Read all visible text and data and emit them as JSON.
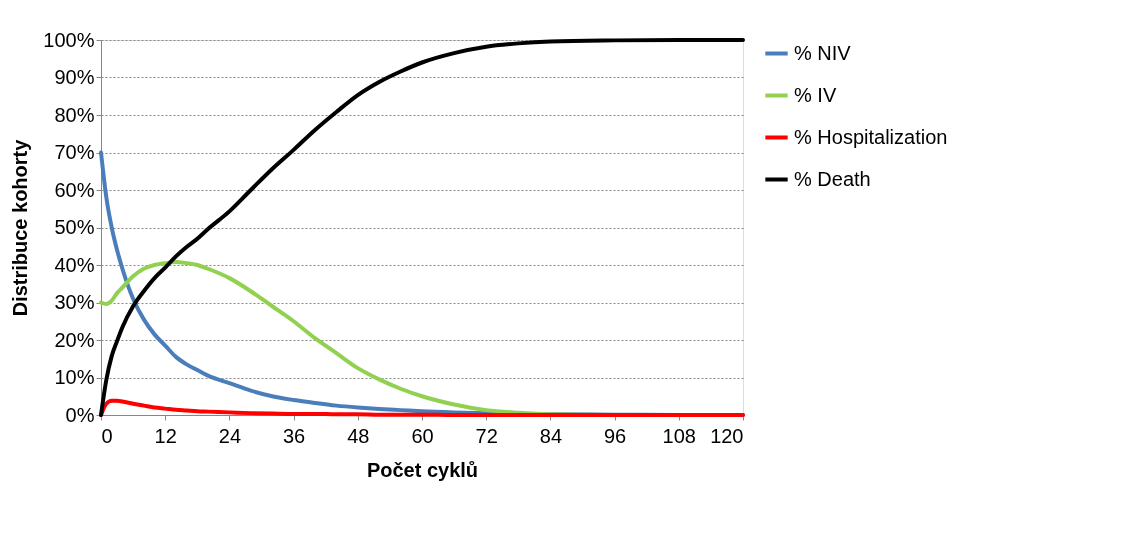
{
  "chart_data": {
    "type": "line",
    "xlabel": "Počet cyklů",
    "ylabel": "Distribuce kohorty",
    "x": [
      0,
      1,
      2,
      3,
      4,
      6,
      8,
      10,
      12,
      14,
      16,
      18,
      20,
      24,
      28,
      32,
      36,
      40,
      44,
      48,
      52,
      56,
      60,
      66,
      72,
      78,
      84,
      96,
      108,
      120
    ],
    "series": [
      {
        "name": "% NIV",
        "color": "#4a7ebb",
        "values": [
          70,
          58,
          50,
          44,
          39,
          31,
          25.5,
          21.5,
          18.5,
          15.5,
          13.5,
          12,
          10.5,
          8.5,
          6.5,
          5,
          4,
          3.2,
          2.5,
          2,
          1.6,
          1.3,
          1,
          0.7,
          0.5,
          0.3,
          0.2,
          0.1,
          0,
          0
        ]
      },
      {
        "name": "% IV",
        "color": "#92d050",
        "values": [
          30,
          29.6,
          30.5,
          32.5,
          34,
          37,
          39,
          40,
          40.5,
          40.8,
          40.5,
          40,
          39,
          36.5,
          33,
          29,
          25,
          20.5,
          16.5,
          12.5,
          9.5,
          7,
          5,
          2.8,
          1.3,
          0.6,
          0.2,
          0,
          null,
          null
        ]
      },
      {
        "name": "% Hospitalization",
        "color": "#ff0000",
        "values": [
          0,
          3,
          3.8,
          3.8,
          3.6,
          3,
          2.5,
          2,
          1.7,
          1.4,
          1.2,
          1,
          0.9,
          0.7,
          0.5,
          0.4,
          0.3,
          0.3,
          0.2,
          0.2,
          0.1,
          0.1,
          0.1,
          0,
          0,
          0,
          0,
          0,
          0,
          0
        ]
      },
      {
        "name": "% Death",
        "color": "#000000",
        "values": [
          0,
          9.4,
          15.7,
          19.7,
          23.4,
          29,
          33,
          36.5,
          39.3,
          42.3,
          44.8,
          47,
          49.6,
          54.3,
          60,
          65.6,
          70.7,
          76,
          80.8,
          85.3,
          88.8,
          91.6,
          94,
          96.5,
          98.2,
          99.1,
          99.6,
          99.9,
          100,
          100
        ]
      }
    ],
    "xlim": [
      0,
      120
    ],
    "xticks": [
      0,
      12,
      24,
      36,
      48,
      60,
      72,
      84,
      96,
      108,
      120
    ],
    "ylim": [
      0,
      100
    ],
    "yticks": [
      {
        "value": 0,
        "label": "0%"
      },
      {
        "value": 10,
        "label": "10%"
      },
      {
        "value": 20,
        "label": "20%"
      },
      {
        "value": 30,
        "label": "30%"
      },
      {
        "value": 40,
        "label": "40%"
      },
      {
        "value": 50,
        "label": "50%"
      },
      {
        "value": 60,
        "label": "60%"
      },
      {
        "value": 70,
        "label": "70%"
      },
      {
        "value": 80,
        "label": "80%"
      },
      {
        "value": 90,
        "label": "90%"
      },
      {
        "value": 100,
        "label": "100%"
      }
    ],
    "grid": "y",
    "legend": "right",
    "marker": "none",
    "line_style": "solid"
  }
}
